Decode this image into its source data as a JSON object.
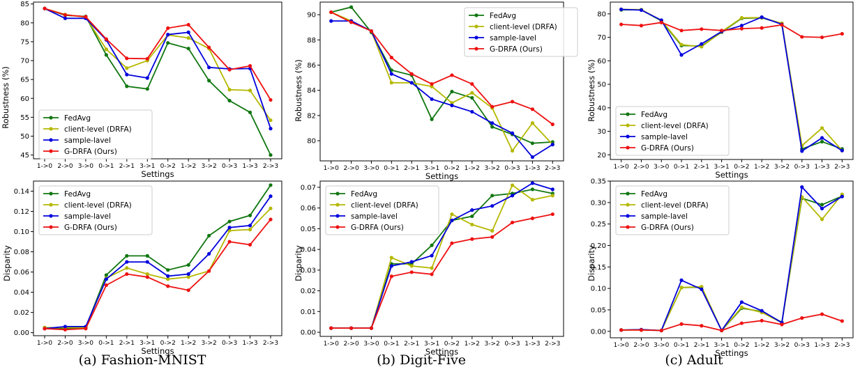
{
  "chart_data": [
    {
      "type": "line",
      "panel": "a",
      "xlabel": "Settings",
      "ylabel": "Robustness (%)",
      "x": [
        "1->0",
        "2->0",
        "3->0",
        "0->1",
        "2->1",
        "3->1",
        "0->2",
        "1->2",
        "3->2",
        "0->3",
        "1->3",
        "2->3"
      ],
      "ylim": [
        44,
        85.5
      ],
      "yticks": [
        45,
        50,
        55,
        60,
        65,
        70,
        75,
        80,
        85
      ],
      "ytick_labels": [
        "45",
        "50",
        "55",
        "60",
        "65",
        "70",
        "75",
        "80",
        "85"
      ],
      "legend": "lower-left",
      "series": [
        {
          "name": "FedAvg",
          "color": "#117711",
          "values": [
            83.8,
            82.0,
            81.7,
            71.5,
            63.2,
            62.5,
            74.7,
            73.2,
            64.7,
            59.4,
            56.3,
            45.0
          ]
        },
        {
          "name": "client-level (DRFA)",
          "color": "#b5b800",
          "values": [
            83.8,
            82.2,
            81.5,
            73.0,
            68.0,
            70.0,
            76.8,
            76.0,
            73.2,
            62.3,
            62.1,
            54.2
          ]
        },
        {
          "name": "sample-lavel",
          "color": "#0000dd",
          "values": [
            83.8,
            81.2,
            81.2,
            75.5,
            66.3,
            65.4,
            76.9,
            77.5,
            68.2,
            67.8,
            67.9,
            52.0
          ]
        },
        {
          "name": "G-DRFA (Ours)",
          "color": "#ee1111",
          "values": [
            83.8,
            82.1,
            81.6,
            75.7,
            70.6,
            70.5,
            78.6,
            79.5,
            73.5,
            67.6,
            68.6,
            59.6
          ]
        }
      ]
    },
    {
      "type": "line",
      "panel": "b",
      "xlabel": "Settings",
      "ylabel": "Robustness (%)",
      "x": [
        "1->0",
        "2->0",
        "3->0",
        "0->1",
        "2->1",
        "3->1",
        "0->2",
        "1->2",
        "3->2",
        "0->3",
        "1->3",
        "2->3"
      ],
      "ylim": [
        78.4,
        91.0
      ],
      "yticks": [
        80,
        82,
        84,
        86,
        88,
        90
      ],
      "ytick_labels": [
        "80",
        "82",
        "84",
        "86",
        "88",
        "90"
      ],
      "legend": "top-right",
      "series": [
        {
          "name": "FedAvg",
          "color": "#117711",
          "values": [
            90.2,
            90.6,
            88.6,
            85.6,
            85.2,
            81.7,
            83.9,
            83.4,
            81.1,
            80.5,
            79.8,
            79.9
          ]
        },
        {
          "name": "client-level (DRFA)",
          "color": "#b5b800",
          "values": [
            90.2,
            89.5,
            88.7,
            84.6,
            84.6,
            84.3,
            83.0,
            83.8,
            82.6,
            79.2,
            81.4,
            79.7
          ]
        },
        {
          "name": "sample-lavel",
          "color": "#0000dd",
          "values": [
            89.5,
            89.5,
            88.7,
            85.3,
            84.6,
            83.3,
            82.8,
            82.3,
            81.4,
            80.6,
            78.7,
            79.7
          ]
        },
        {
          "name": "G-DRFA (Ours)",
          "color": "#ee1111",
          "values": [
            90.2,
            89.4,
            88.7,
            86.6,
            85.3,
            84.5,
            85.2,
            84.5,
            82.7,
            83.1,
            82.5,
            81.3
          ]
        }
      ]
    },
    {
      "type": "line",
      "panel": "c",
      "xlabel": "Settings",
      "ylabel": "Robustness (%)",
      "x": [
        "1->0",
        "2->0",
        "3->0",
        "0->1",
        "2->1",
        "3->1",
        "0->2",
        "1->2",
        "3->2",
        "0->3",
        "1->3",
        "2->3"
      ],
      "ylim": [
        18,
        85
      ],
      "yticks": [
        20,
        30,
        40,
        50,
        60,
        70,
        80
      ],
      "ytick_labels": [
        "20",
        "30",
        "40",
        "50",
        "60",
        "70",
        "80"
      ],
      "legend": "center-right",
      "series": [
        {
          "name": "FedAvg",
          "color": "#117711",
          "values": [
            81.7,
            81.7,
            77.0,
            66.5,
            66.3,
            72.2,
            78.1,
            78.3,
            75.9,
            22.5,
            25.6,
            22.5
          ]
        },
        {
          "name": "client-level (DRFA)",
          "color": "#b5b800",
          "values": [
            81.9,
            81.8,
            77.2,
            66.9,
            66.0,
            72.4,
            78.3,
            78.4,
            76.0,
            23.9,
            31.4,
            21.8
          ]
        },
        {
          "name": "sample-lavel",
          "color": "#0000dd",
          "values": [
            81.9,
            81.6,
            77.3,
            62.5,
            67.2,
            72.5,
            75.0,
            78.6,
            75.5,
            21.6,
            27.2,
            21.8
          ]
        },
        {
          "name": "G-DRFA (Ours)",
          "color": "#ee1111",
          "values": [
            75.5,
            75.0,
            76.3,
            72.9,
            73.5,
            72.9,
            73.7,
            74.0,
            75.3,
            70.2,
            70.0,
            71.5
          ]
        }
      ]
    },
    {
      "type": "line",
      "panel": "a",
      "xlabel": "Settings",
      "ylabel": "Disparity",
      "x": [
        "1->0",
        "2->0",
        "3->0",
        "0->1",
        "2->1",
        "3->1",
        "0->2",
        "1->2",
        "3->2",
        "0->3",
        "1->3",
        "2->3"
      ],
      "ylim": [
        -0.003,
        0.15
      ],
      "yticks": [
        0,
        0.02,
        0.04,
        0.06,
        0.08,
        0.1,
        0.12,
        0.14
      ],
      "ytick_labels": [
        "0.00",
        "0.02",
        "0.04",
        "0.06",
        "0.08",
        "0.10",
        "0.12",
        "0.14"
      ],
      "legend": "top-left",
      "series": [
        {
          "name": "FedAvg",
          "color": "#117711",
          "values": [
            0.005,
            0.004,
            0.005,
            0.057,
            0.076,
            0.076,
            0.062,
            0.067,
            0.096,
            0.11,
            0.116,
            0.146
          ]
        },
        {
          "name": "client-level (DRFA)",
          "color": "#b5b800",
          "values": [
            0.005,
            0.005,
            0.005,
            0.054,
            0.064,
            0.058,
            0.053,
            0.055,
            0.061,
            0.101,
            0.102,
            0.123
          ]
        },
        {
          "name": "sample-lavel",
          "color": "#0000dd",
          "values": [
            0.004,
            0.006,
            0.006,
            0.053,
            0.07,
            0.07,
            0.056,
            0.058,
            0.078,
            0.104,
            0.106,
            0.135
          ]
        },
        {
          "name": "G-DRFA (Ours)",
          "color": "#ee1111",
          "values": [
            0.004,
            0.003,
            0.004,
            0.047,
            0.058,
            0.055,
            0.046,
            0.042,
            0.061,
            0.09,
            0.087,
            0.112
          ]
        }
      ]
    },
    {
      "type": "line",
      "panel": "b",
      "xlabel": "Settings",
      "ylabel": "Disparity",
      "x": [
        "1->0",
        "2->0",
        "3->0",
        "0->1",
        "2->1",
        "3->1",
        "0->2",
        "1->2",
        "3->2",
        "0->3",
        "1->3",
        "2->3"
      ],
      "ylim": [
        -0.002,
        0.073
      ],
      "yticks": [
        0,
        0.01,
        0.02,
        0.03,
        0.04,
        0.05,
        0.06,
        0.07
      ],
      "ytick_labels": [
        "0.00",
        "0.01",
        "0.02",
        "0.03",
        "0.04",
        "0.05",
        "0.06",
        "0.07"
      ],
      "legend": "top-left",
      "series": [
        {
          "name": "FedAvg",
          "color": "#117711",
          "values": [
            0.002,
            0.002,
            0.002,
            0.033,
            0.033,
            0.042,
            0.054,
            0.056,
            0.066,
            0.067,
            0.069,
            0.067
          ]
        },
        {
          "name": "client-level (DRFA)",
          "color": "#b5b800",
          "values": [
            0.002,
            0.002,
            0.002,
            0.036,
            0.032,
            0.031,
            0.057,
            0.052,
            0.049,
            0.071,
            0.064,
            0.066
          ]
        },
        {
          "name": "sample-lavel",
          "color": "#0000dd",
          "values": [
            0.002,
            0.002,
            0.002,
            0.032,
            0.034,
            0.037,
            0.054,
            0.059,
            0.061,
            0.066,
            0.072,
            0.069
          ]
        },
        {
          "name": "G-DRFA (Ours)",
          "color": "#ee1111",
          "values": [
            0.002,
            0.002,
            0.002,
            0.027,
            0.029,
            0.028,
            0.043,
            0.045,
            0.046,
            0.053,
            0.055,
            0.057
          ]
        }
      ]
    },
    {
      "type": "line",
      "panel": "c",
      "xlabel": "Settings",
      "ylabel": "Disparity",
      "x": [
        "1->0",
        "2->0",
        "3->0",
        "0->1",
        "2->1",
        "3->1",
        "0->2",
        "1->2",
        "3->2",
        "0->3",
        "1->3",
        "2->3"
      ],
      "ylim": [
        -0.015,
        0.35
      ],
      "yticks": [
        0,
        0.05,
        0.1,
        0.15,
        0.2,
        0.25,
        0.3,
        0.35
      ],
      "ytick_labels": [
        "0.00",
        "0.05",
        "0.10",
        "0.15",
        "0.20",
        "0.25",
        "0.30",
        "0.35"
      ],
      "legend": "top-left",
      "series": [
        {
          "name": "FedAvg",
          "color": "#117711",
          "values": [
            0.003,
            0.004,
            0.002,
            0.102,
            0.103,
            0.002,
            0.054,
            0.046,
            0.021,
            0.31,
            0.295,
            0.315
          ]
        },
        {
          "name": "client-level (DRFA)",
          "color": "#b5b800",
          "values": [
            0.003,
            0.003,
            0.002,
            0.102,
            0.104,
            0.002,
            0.056,
            0.044,
            0.02,
            0.313,
            0.261,
            0.319
          ]
        },
        {
          "name": "sample-lavel",
          "color": "#0000dd",
          "values": [
            0.003,
            0.004,
            0.002,
            0.119,
            0.098,
            0.002,
            0.068,
            0.048,
            0.02,
            0.336,
            0.286,
            0.314
          ]
        },
        {
          "name": "G-DRFA (Ours)",
          "color": "#ee1111",
          "values": [
            0.003,
            0.003,
            0.002,
            0.017,
            0.013,
            0.002,
            0.019,
            0.025,
            0.016,
            0.031,
            0.04,
            0.024
          ]
        }
      ]
    }
  ],
  "captions": {
    "a": "(a)  Fashion-MNIST",
    "b": "(b)  Digit-Five",
    "c": "(c)  Adult"
  }
}
